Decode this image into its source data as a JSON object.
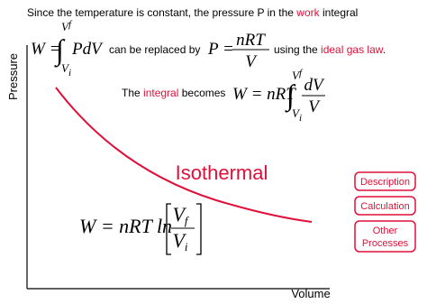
{
  "intro": {
    "before": "Since the temperature is constant, the pressure P in the",
    "link": "work",
    "after": "integral"
  },
  "work_integral": {
    "lhs": "W =",
    "sign": "∫",
    "integrand": "PdV",
    "upper": "V",
    "upper_sub": "f",
    "lower": "V",
    "lower_sub": "i"
  },
  "replaced_text": "can be replaced by",
  "pressure_formula": {
    "lhs": "P =",
    "numerator": "nRT",
    "denominator": "V"
  },
  "law_text": {
    "before": "using the",
    "link": "ideal gas law",
    "after": "."
  },
  "becomes": {
    "before": "The",
    "link": "integral",
    "after": "becomes"
  },
  "integral_formula": {
    "lhs": "W = nRT",
    "sign": "∫",
    "upper": "V",
    "upper_sub": "f",
    "lower": "V",
    "lower_sub": "i",
    "numerator": "dV",
    "denominator": "V"
  },
  "result": {
    "lhs": "W = nRT ln",
    "numerator": "V",
    "numerator_sub": "f",
    "denominator": "V",
    "denominator_sub": "i"
  },
  "axes": {
    "y_label": "Pressure",
    "x_label": "Volume"
  },
  "curve_label": "Isothermal",
  "buttons": [
    [
      "Description"
    ],
    [
      "Calculation"
    ],
    [
      "Other",
      "Processes"
    ]
  ]
}
